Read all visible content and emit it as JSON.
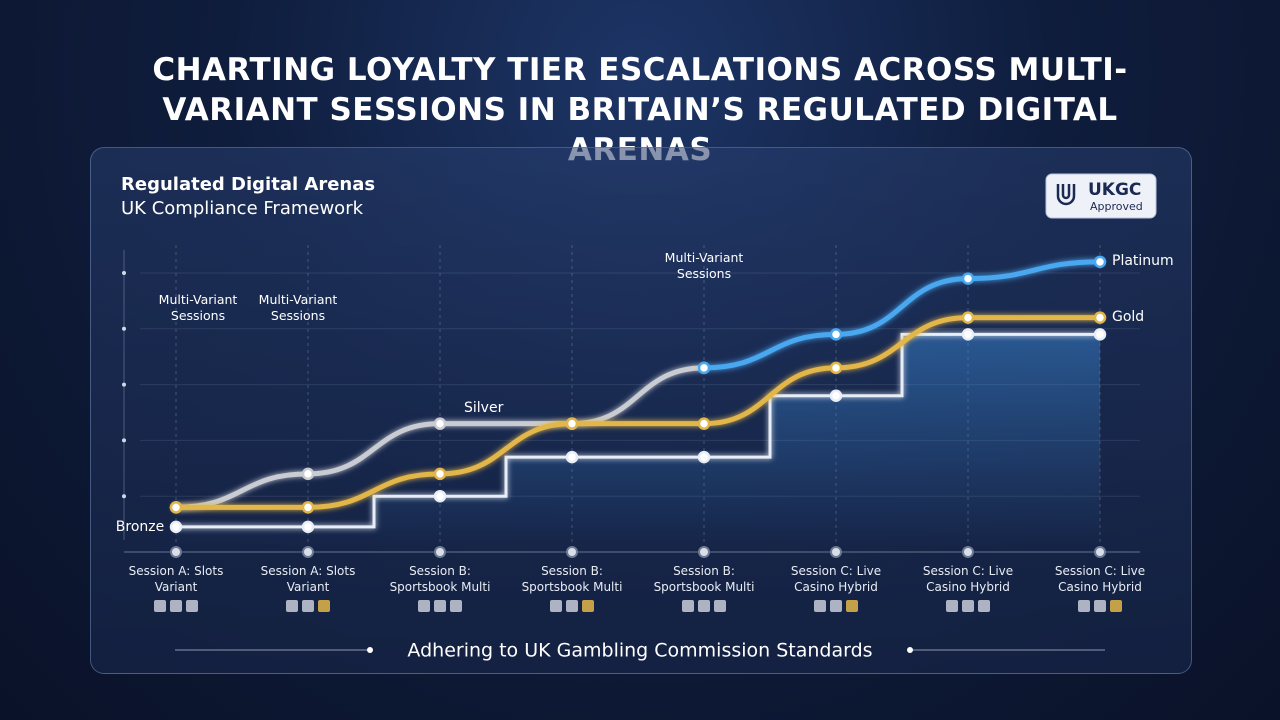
{
  "header": {
    "title": "CHARTING LOYALTY TIER ESCALATIONS ACROSS MULTI-VARIANT SESSIONS IN BRITAIN’S REGULATED DIGITAL ARENAS"
  },
  "panel": {
    "heading": "Regulated Digital Arenas",
    "subheading": "UK Compliance Framework",
    "badge": {
      "title": "UKGC",
      "subtitle": "Approved"
    },
    "footer": "Adhering to UK Gambling Commission Standards"
  },
  "chart_data": {
    "type": "line",
    "categories": [
      "Session A: Slots Variant",
      "Session A: Slots Variant",
      "Session B: Sportsbook Multi",
      "Session B: Sportsbook Multi",
      "Session B: Sportsbook Multi",
      "Session C: Live Casino Hybrid",
      "Session C: Live Casino Hybrid",
      "Session C: Live Casino Hybrid"
    ],
    "ylim": [
      0,
      5
    ],
    "annotations": [
      "Multi-Variant Sessions",
      "Multi-Variant Sessions",
      "Multi-Variant Sessions"
    ],
    "series": [
      {
        "name": "Bronze",
        "color": "#e8eef8",
        "style": "step",
        "values": [
          0.45,
          0.45,
          1.0,
          1.7,
          1.7,
          2.8,
          3.9,
          3.9
        ]
      },
      {
        "name": "Silver",
        "color": "#c9ccd2",
        "style": "curve",
        "values": [
          0.8,
          1.4,
          2.3,
          2.3,
          3.3,
          null,
          null,
          null
        ]
      },
      {
        "name": "Gold",
        "color": "#e3b64a",
        "style": "curve",
        "values": [
          0.8,
          0.8,
          1.4,
          2.3,
          2.3,
          3.3,
          4.2,
          4.2
        ]
      },
      {
        "name": "Platinum",
        "color": "#4aa8f0",
        "style": "curve",
        "values": [
          null,
          null,
          null,
          null,
          3.3,
          3.9,
          4.9,
          5.2
        ]
      }
    ]
  }
}
